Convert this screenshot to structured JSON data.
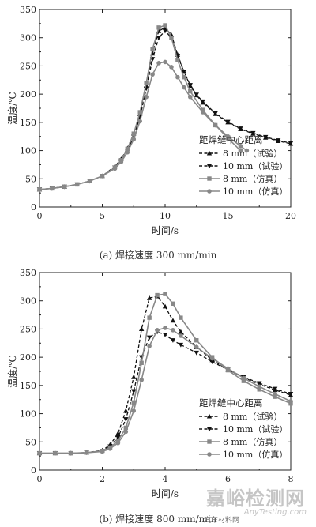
{
  "chart_data": [
    {
      "type": "line",
      "caption": "(a) 焊接速度 300 mm/min",
      "xlabel": "时间/s",
      "ylabel": "温度/℃",
      "xlim": [
        0,
        20
      ],
      "ylim": [
        0,
        350
      ],
      "xticks": [
        "0",
        "5",
        "10",
        "15",
        "20"
      ],
      "yticks": [
        "0",
        "50",
        "100",
        "150",
        "200",
        "250",
        "300",
        "350"
      ],
      "legend_title": "距焊缝中心距离",
      "legend_position": "bottom-right",
      "series": [
        {
          "name": "8 mm（试验）",
          "marker": "triangle-up",
          "dashed": true,
          "color": "#111111",
          "x": [
            0,
            1,
            2,
            3,
            4,
            5,
            6,
            6.5,
            7,
            7.5,
            8,
            8.5,
            9,
            9.5,
            10,
            10.5,
            11,
            11.5,
            12,
            12.5,
            13,
            14,
            15,
            16,
            17,
            18,
            19,
            20
          ],
          "y": [
            31,
            33,
            36,
            40,
            46,
            55,
            72,
            85,
            104,
            130,
            165,
            215,
            272,
            312,
            318,
            305,
            270,
            240,
            215,
            198,
            185,
            165,
            150,
            138,
            130,
            123,
            117,
            112
          ]
        },
        {
          "name": "10 mm（试验）",
          "marker": "triangle-down",
          "dashed": true,
          "color": "#111111",
          "x": [
            0,
            1,
            2,
            3,
            4,
            5,
            6,
            6.5,
            7,
            7.5,
            8,
            8.5,
            9,
            9.5,
            10,
            10.5,
            11,
            11.5,
            12,
            12.5,
            13,
            14,
            15,
            16,
            17,
            18,
            19,
            20
          ],
          "y": [
            31,
            33,
            36,
            40,
            46,
            55,
            70,
            82,
            100,
            125,
            160,
            210,
            262,
            300,
            312,
            300,
            268,
            240,
            216,
            199,
            187,
            166,
            151,
            139,
            131,
            124,
            118,
            113
          ]
        },
        {
          "name": "8 mm（仿真）",
          "marker": "square",
          "dashed": false,
          "color": "#888888",
          "x": [
            0,
            1,
            2,
            3,
            4,
            5,
            6,
            6.5,
            7,
            7.5,
            8,
            8.5,
            9,
            9.5,
            10,
            10.5,
            11,
            11.5,
            12,
            13,
            14,
            15,
            16
          ],
          "y": [
            31,
            33,
            36,
            40,
            46,
            55,
            70,
            83,
            103,
            130,
            168,
            220,
            280,
            318,
            322,
            300,
            260,
            230,
            205,
            172,
            145,
            122,
            100
          ]
        },
        {
          "name": "10 mm（仿真）",
          "marker": "circle",
          "dashed": false,
          "color": "#888888",
          "x": [
            0,
            1,
            2,
            3,
            4,
            5,
            6,
            6.5,
            7,
            7.5,
            8,
            8.5,
            9,
            9.5,
            10,
            10.5,
            11,
            11.5,
            12,
            13,
            14,
            15,
            16,
            16.5
          ],
          "y": [
            31,
            33,
            36,
            40,
            46,
            55,
            68,
            80,
            97,
            120,
            152,
            195,
            235,
            255,
            257,
            248,
            230,
            212,
            195,
            168,
            145,
            125,
            108,
            100
          ]
        }
      ]
    },
    {
      "type": "line",
      "caption": "(b) 焊接速度 800 mm/min",
      "xlabel": "时间/s",
      "ylabel": "温度/℃",
      "xlim": [
        0,
        8
      ],
      "ylim": [
        0,
        350
      ],
      "xticks": [
        "0",
        "2",
        "4",
        "6",
        "8"
      ],
      "yticks": [
        "0",
        "50",
        "100",
        "150",
        "200",
        "250",
        "300",
        "350"
      ],
      "legend_title": "距焊缝中心距离",
      "legend_position": "bottom-right",
      "series": [
        {
          "name": "8 mm（试验）",
          "marker": "triangle-up",
          "dashed": true,
          "color": "#111111",
          "x": [
            0,
            0.5,
            1,
            1.5,
            2,
            2.25,
            2.5,
            2.75,
            3,
            3.25,
            3.5,
            3.75,
            4,
            4.25,
            4.5,
            5,
            5.5,
            6,
            6.5,
            7,
            7.5,
            8
          ],
          "y": [
            30,
            30,
            30,
            31,
            35,
            45,
            65,
            105,
            165,
            250,
            305,
            308,
            290,
            265,
            245,
            218,
            195,
            178,
            164,
            152,
            142,
            133
          ]
        },
        {
          "name": "10 mm（试验）",
          "marker": "triangle-down",
          "dashed": true,
          "color": "#111111",
          "x": [
            0,
            0.5,
            1,
            1.5,
            2,
            2.25,
            2.5,
            2.75,
            3,
            3.25,
            3.5,
            3.75,
            4,
            4.25,
            4.5,
            5,
            5.5,
            6,
            6.5,
            7,
            7.5,
            8
          ],
          "y": [
            30,
            30,
            30,
            31,
            34,
            42,
            58,
            90,
            140,
            200,
            235,
            245,
            240,
            230,
            222,
            208,
            192,
            178,
            165,
            154,
            144,
            135
          ]
        },
        {
          "name": "8 mm（仿真）",
          "marker": "square",
          "dashed": false,
          "color": "#888888",
          "x": [
            0,
            0.5,
            1,
            1.5,
            2,
            2.25,
            2.5,
            2.75,
            3,
            3.25,
            3.5,
            3.75,
            4,
            4.25,
            4.5,
            5,
            5.5,
            6,
            6.5,
            7,
            7.5,
            8
          ],
          "y": [
            30,
            30,
            30,
            31,
            34,
            40,
            52,
            75,
            120,
            190,
            270,
            310,
            312,
            295,
            270,
            230,
            200,
            177,
            158,
            143,
            130,
            118
          ]
        },
        {
          "name": "10 mm（仿真）",
          "marker": "circle",
          "dashed": false,
          "color": "#888888",
          "x": [
            0,
            0.5,
            1,
            1.5,
            2,
            2.25,
            2.5,
            2.75,
            3,
            3.25,
            3.5,
            3.75,
            4,
            4.25,
            4.5,
            5,
            5.5,
            6,
            6.5,
            7,
            7.5,
            8
          ],
          "y": [
            30,
            30,
            30,
            31,
            33,
            38,
            48,
            68,
            105,
            160,
            220,
            248,
            252,
            248,
            238,
            218,
            198,
            180,
            163,
            148,
            135,
            122
          ]
        }
      ]
    }
  ],
  "watermark": {
    "main": "嘉峪检测网",
    "sub": "AnyTesting.com",
    "mini": "汽车材料网"
  }
}
